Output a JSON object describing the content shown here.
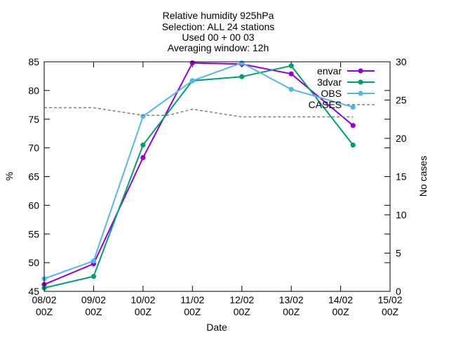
{
  "chart_data": {
    "type": "line",
    "title_lines": [
      "Relative humidity 925hPa",
      "Selection: ALL      24 stations",
      "Used 00 + 00 03",
      "Averaging window: 12h"
    ],
    "xlabel": "Date",
    "ylabel": "%",
    "y2label": "No cases",
    "ylim": [
      45,
      85
    ],
    "y2lim": [
      0,
      30
    ],
    "xlim_days": [
      8,
      15
    ],
    "yticks": [
      "45",
      "50",
      "55",
      "60",
      "65",
      "70",
      "75",
      "80",
      "85"
    ],
    "y2ticks": [
      "0",
      "5",
      "10",
      "15",
      "20",
      "25",
      "30"
    ],
    "xticks": [
      {
        "top": "08/02",
        "bottom": "00Z"
      },
      {
        "top": "09/02",
        "bottom": "00Z"
      },
      {
        "top": "10/02",
        "bottom": "00Z"
      },
      {
        "top": "11/02",
        "bottom": "00Z"
      },
      {
        "top": "12/02",
        "bottom": "00Z"
      },
      {
        "top": "13/02",
        "bottom": "00Z"
      },
      {
        "top": "14/02",
        "bottom": "00Z"
      },
      {
        "top": "15/02",
        "bottom": "00Z"
      }
    ],
    "grid": false,
    "legend_position": "top-right",
    "series": [
      {
        "name": "envar",
        "color": "#9400d3",
        "x": [
          "08/02 00Z",
          "09/02 00Z",
          "10/02 00Z",
          "11/02 00Z",
          "12/02 00Z",
          "13/02 00Z",
          "14/02 06Z"
        ],
        "y": [
          46.2,
          49.8,
          68.3,
          84.8,
          84.6,
          82.9,
          73.9
        ]
      },
      {
        "name": "3dvar",
        "color": "#009e73",
        "x": [
          "08/02 00Z",
          "09/02 00Z",
          "10/02 00Z",
          "11/02 00Z",
          "12/02 00Z",
          "13/02 00Z",
          "14/02 06Z"
        ],
        "y": [
          45.6,
          47.6,
          70.5,
          81.7,
          82.4,
          84.3,
          70.5
        ]
      },
      {
        "name": "OBS",
        "color": "#56b4e9",
        "x": [
          "08/02 00Z",
          "09/02 00Z",
          "10/02 00Z",
          "11/02 00Z",
          "12/02 00Z",
          "13/02 00Z",
          "14/02 06Z"
        ],
        "y": [
          47.2,
          50.3,
          75.5,
          81.7,
          84.8,
          80.2,
          77.1
        ]
      },
      {
        "name": "CASES",
        "color": "#808080",
        "axis": "y2",
        "dashed": true,
        "x": [
          "08/02 00Z",
          "09/02 00Z",
          "09/02 12Z",
          "10/02 00Z",
          "10/02 12Z",
          "11/02 00Z",
          "11/02 12Z",
          "12/02 00Z",
          "13/02 00Z",
          "14/02 00Z",
          "14/02 06Z"
        ],
        "y": [
          24,
          24,
          23.5,
          23,
          23,
          23.8,
          23.3,
          22.8,
          22.8,
          22.8,
          22.8
        ]
      }
    ]
  }
}
